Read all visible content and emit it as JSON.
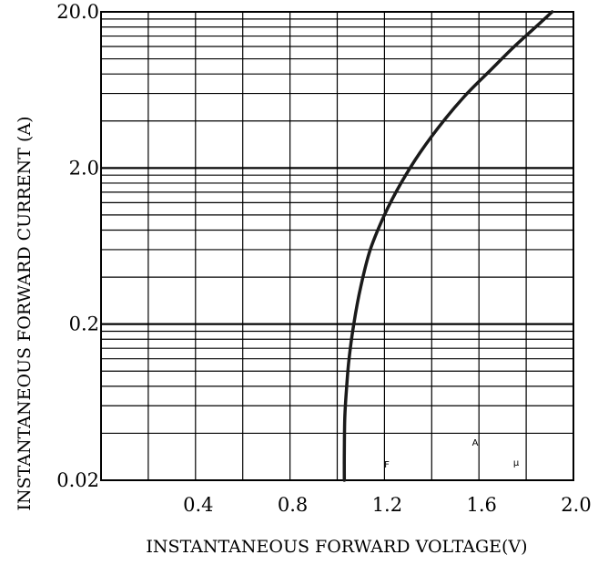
{
  "chart_data": {
    "type": "line",
    "title": "",
    "xlabel": "INSTANTANEOUS FORWARD VOLTAGE(V)",
    "ylabel": "INSTANTANEOUS FORWARD CURRENT (A)",
    "x_scale": "linear",
    "y_scale": "log",
    "xlim": [
      0.0,
      2.0
    ],
    "ylim": [
      0.02,
      20.0
    ],
    "x_ticks": [
      0.4,
      0.8,
      1.2,
      1.6,
      2.0
    ],
    "x_tick_labels": [
      "0.4",
      "0.8",
      "1.2",
      "1.6",
      "2.0"
    ],
    "y_ticks": [
      0.02,
      0.2,
      2.0,
      20.0
    ],
    "y_tick_labels": [
      "0.02",
      "0.2",
      "2.0",
      "20.0"
    ],
    "grid": true,
    "legend": "none",
    "line_color": "#1a1a1a",
    "annotations": [
      "F",
      "A",
      "μ"
    ],
    "series": [
      {
        "x": [
          1.03,
          1.03,
          1.032,
          1.04,
          1.05,
          1.07,
          1.1,
          1.14,
          1.2,
          1.27,
          1.35,
          1.45,
          1.55,
          1.65,
          1.75,
          1.85,
          1.91
        ],
        "y": [
          0.02,
          0.03,
          0.05,
          0.08,
          0.12,
          0.2,
          0.35,
          0.6,
          1.0,
          1.6,
          2.5,
          4.0,
          6.0,
          8.5,
          12.0,
          16.5,
          20.0
        ]
      }
    ]
  }
}
